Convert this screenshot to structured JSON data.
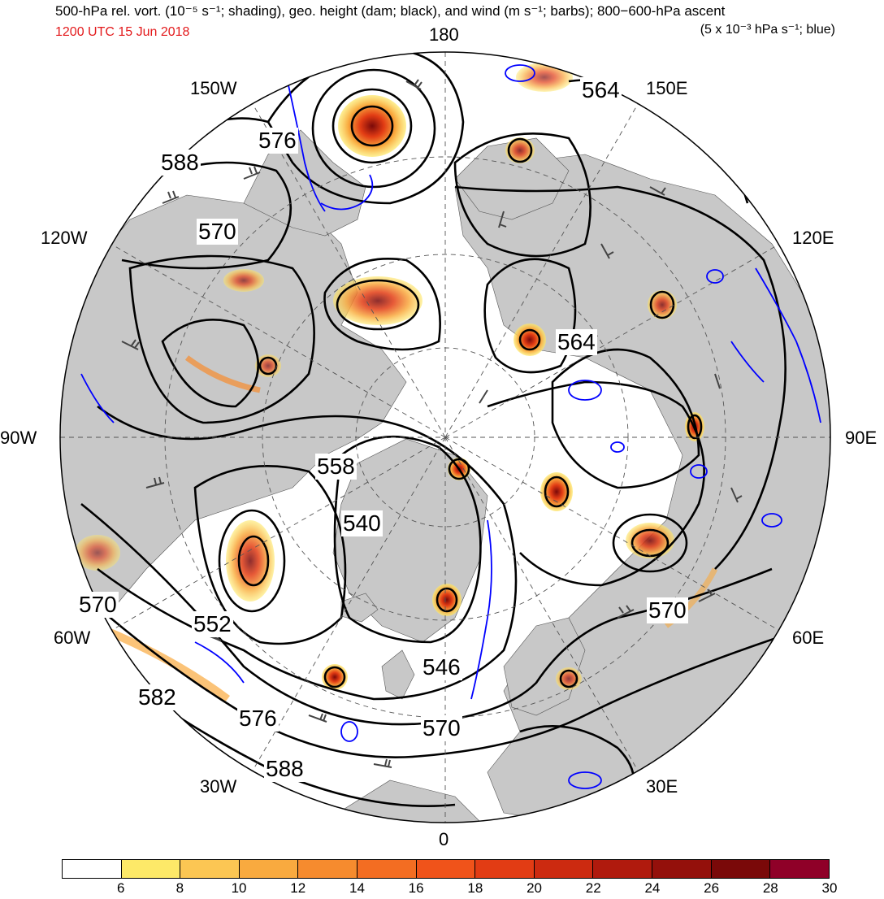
{
  "title": {
    "line1": "500-hPa rel. vort. (10⁻⁵ s⁻¹; shading), geo. height (dam; black), and wind (m s⁻¹; barbs); 800−600-hPa ascent",
    "line2": "1200 UTC 15 Jun 2018",
    "line3": "(5 x 10⁻³ hPa s⁻¹; blue)"
  },
  "longitude_labels": {
    "n180": "180",
    "w150": "150W",
    "e150": "150E",
    "w120": "120W",
    "e120": "120E",
    "w90": "90W",
    "e90": "90E",
    "w60": "60W",
    "e60": "60E",
    "w30": "30W",
    "e30": "30E",
    "s0": "0"
  },
  "contour_labels": [
    "564",
    "576",
    "588",
    "570",
    "564",
    "558",
    "540",
    "570",
    "552",
    "546",
    "582",
    "576",
    "570",
    "588",
    "570"
  ],
  "colorbar": {
    "ticks": [
      "6",
      "8",
      "10",
      "12",
      "14",
      "16",
      "18",
      "20",
      "22",
      "24",
      "26",
      "28",
      "30"
    ],
    "colors": [
      "#ffffff",
      "#fde968",
      "#fcc653",
      "#f9aa3f",
      "#f68b2e",
      "#f36d22",
      "#f0531a",
      "#e23c14",
      "#cc2a10",
      "#b01a0d",
      "#94100b",
      "#7a0909",
      "#8f0028"
    ]
  },
  "colors": {
    "land": "#c8c8c8",
    "ocean": "#ffffff",
    "height_contours": "#000000",
    "ascent_contours": "#0000ff",
    "date_text": "#e31a1c"
  }
}
